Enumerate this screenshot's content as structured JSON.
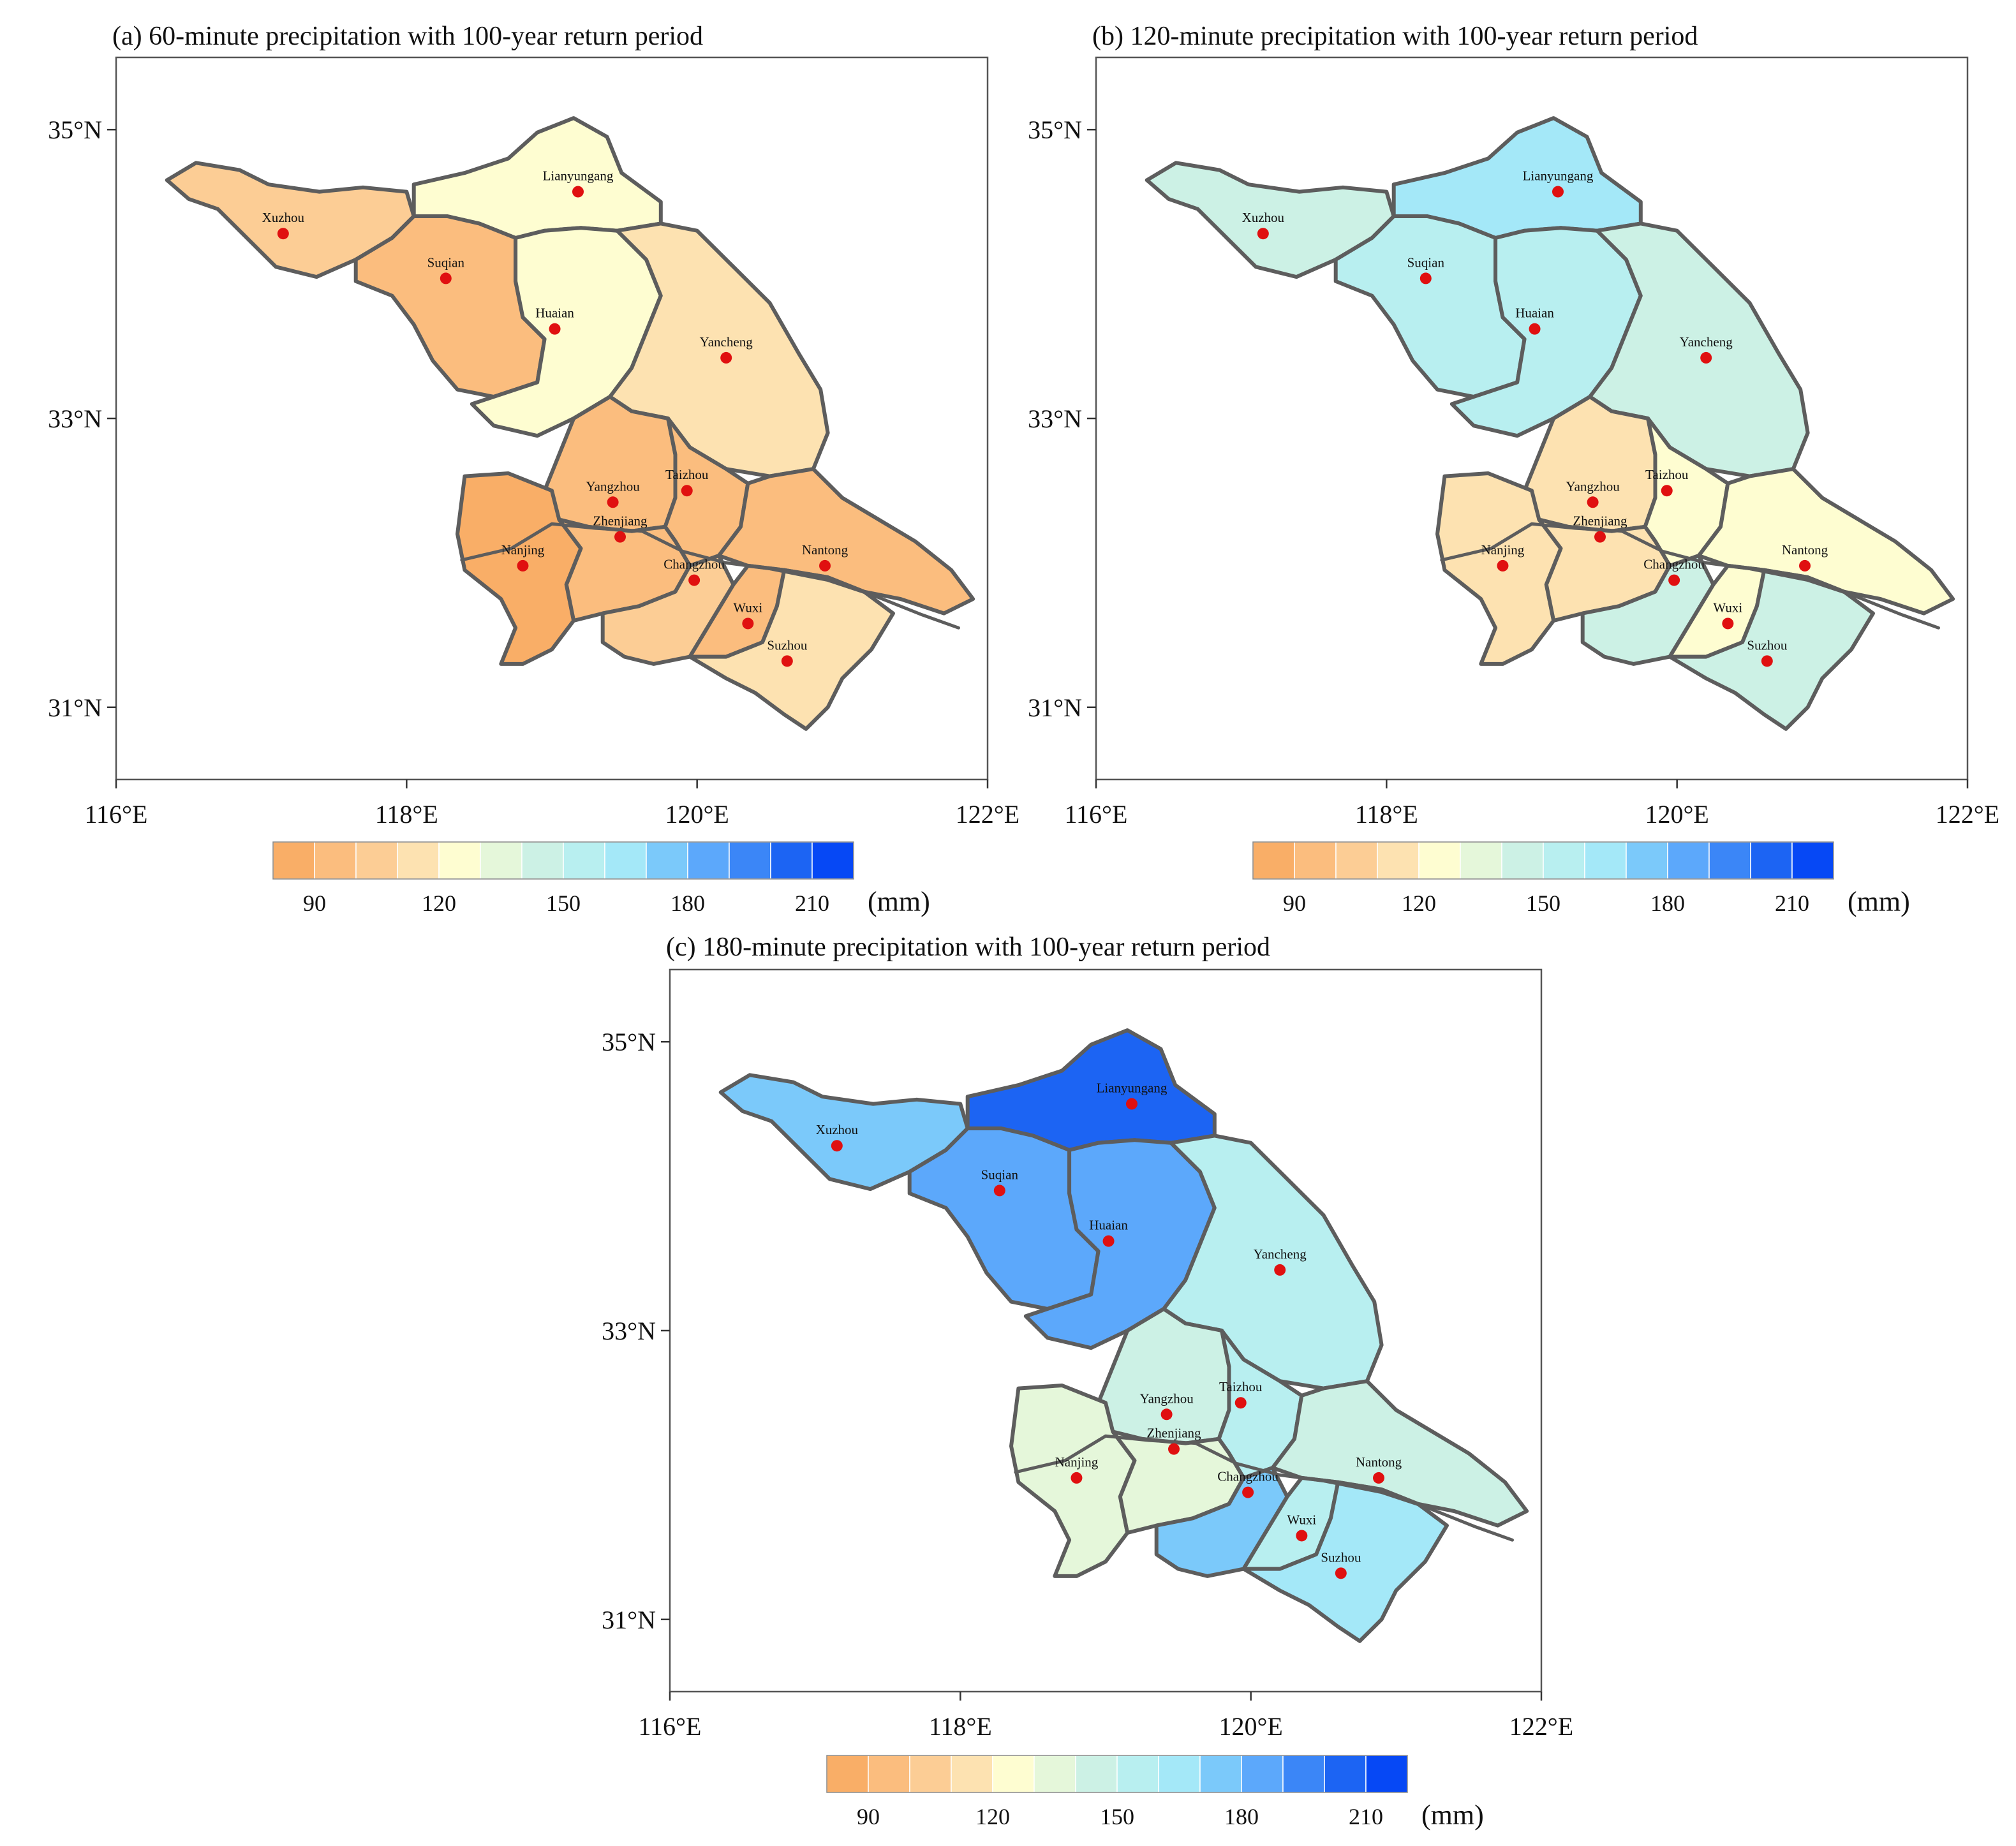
{
  "figure": {
    "colorbar": {
      "colors": [
        "#f9ae67",
        "#fbbd7e",
        "#fccd95",
        "#fde2b1",
        "#fefdd1",
        "#e5f7da",
        "#ccf1e5",
        "#b8eff0",
        "#a4e8f8",
        "#7bc9fa",
        "#5ca8fb",
        "#3b86f7",
        "#1c64f3",
        "#0648f5"
      ],
      "labels": [
        "90",
        "120",
        "150",
        "180",
        "210"
      ],
      "unit": "(mm)"
    },
    "axes": {
      "x_ticks": [
        "116°E",
        "118°E",
        "120°E",
        "122°E"
      ],
      "y_ticks": [
        "35°N",
        "33°N",
        "31°N"
      ],
      "lon_range": [
        116,
        122
      ],
      "lat_range": [
        30.5,
        35.5
      ]
    },
    "cities": [
      {
        "name": "Lianyungang",
        "lon": 119.18,
        "lat": 34.57
      },
      {
        "name": "Xuzhou",
        "lon": 117.15,
        "lat": 34.28
      },
      {
        "name": "Suqian",
        "lon": 118.27,
        "lat": 33.97
      },
      {
        "name": "Huaian",
        "lon": 119.02,
        "lat": 33.62
      },
      {
        "name": "Yancheng",
        "lon": 120.2,
        "lat": 33.42
      },
      {
        "name": "Yangzhou",
        "lon": 119.42,
        "lat": 32.42
      },
      {
        "name": "Taizhou",
        "lon": 119.93,
        "lat": 32.5
      },
      {
        "name": "Zhenjiang",
        "lon": 119.47,
        "lat": 32.18
      },
      {
        "name": "Nanjing",
        "lon": 118.8,
        "lat": 31.98
      },
      {
        "name": "Nantong",
        "lon": 120.88,
        "lat": 31.98
      },
      {
        "name": "Changzhou",
        "lon": 119.98,
        "lat": 31.88
      },
      {
        "name": "Wuxi",
        "lon": 120.35,
        "lat": 31.58
      },
      {
        "name": "Suzhou",
        "lon": 120.62,
        "lat": 31.32
      }
    ],
    "panels": [
      {
        "id": "a",
        "title": "(a) 60-minute precipitation with 100-year return period",
        "fill_levels": {
          "Lianyungang": 4,
          "Xuzhou": 2,
          "Suqian": 1,
          "Huaian": 4,
          "Yancheng": 3,
          "Yangzhou": 1,
          "Taizhou": 1,
          "Zhenjiang": 1,
          "Nanjing": 0,
          "Nantong": 1,
          "Changzhou": 2,
          "Wuxi": 1,
          "Suzhou": 3
        }
      },
      {
        "id": "b",
        "title": "(b) 120-minute precipitation with 100-year return period",
        "fill_levels": {
          "Lianyungang": 8,
          "Xuzhou": 6,
          "Suqian": 7,
          "Huaian": 7,
          "Yancheng": 6,
          "Yangzhou": 3,
          "Taizhou": 4,
          "Zhenjiang": 3,
          "Nanjing": 3,
          "Nantong": 4,
          "Changzhou": 6,
          "Wuxi": 4,
          "Suzhou": 6
        }
      },
      {
        "id": "c",
        "title": "(c) 180-minute precipitation with 100-year return period",
        "fill_levels": {
          "Lianyungang": 12,
          "Xuzhou": 9,
          "Suqian": 10,
          "Huaian": 10,
          "Yancheng": 7,
          "Yangzhou": 6,
          "Taizhou": 7,
          "Zhenjiang": 5,
          "Nanjing": 5,
          "Nantong": 6,
          "Changzhou": 9,
          "Wuxi": 7,
          "Suzhou": 8
        }
      }
    ]
  }
}
